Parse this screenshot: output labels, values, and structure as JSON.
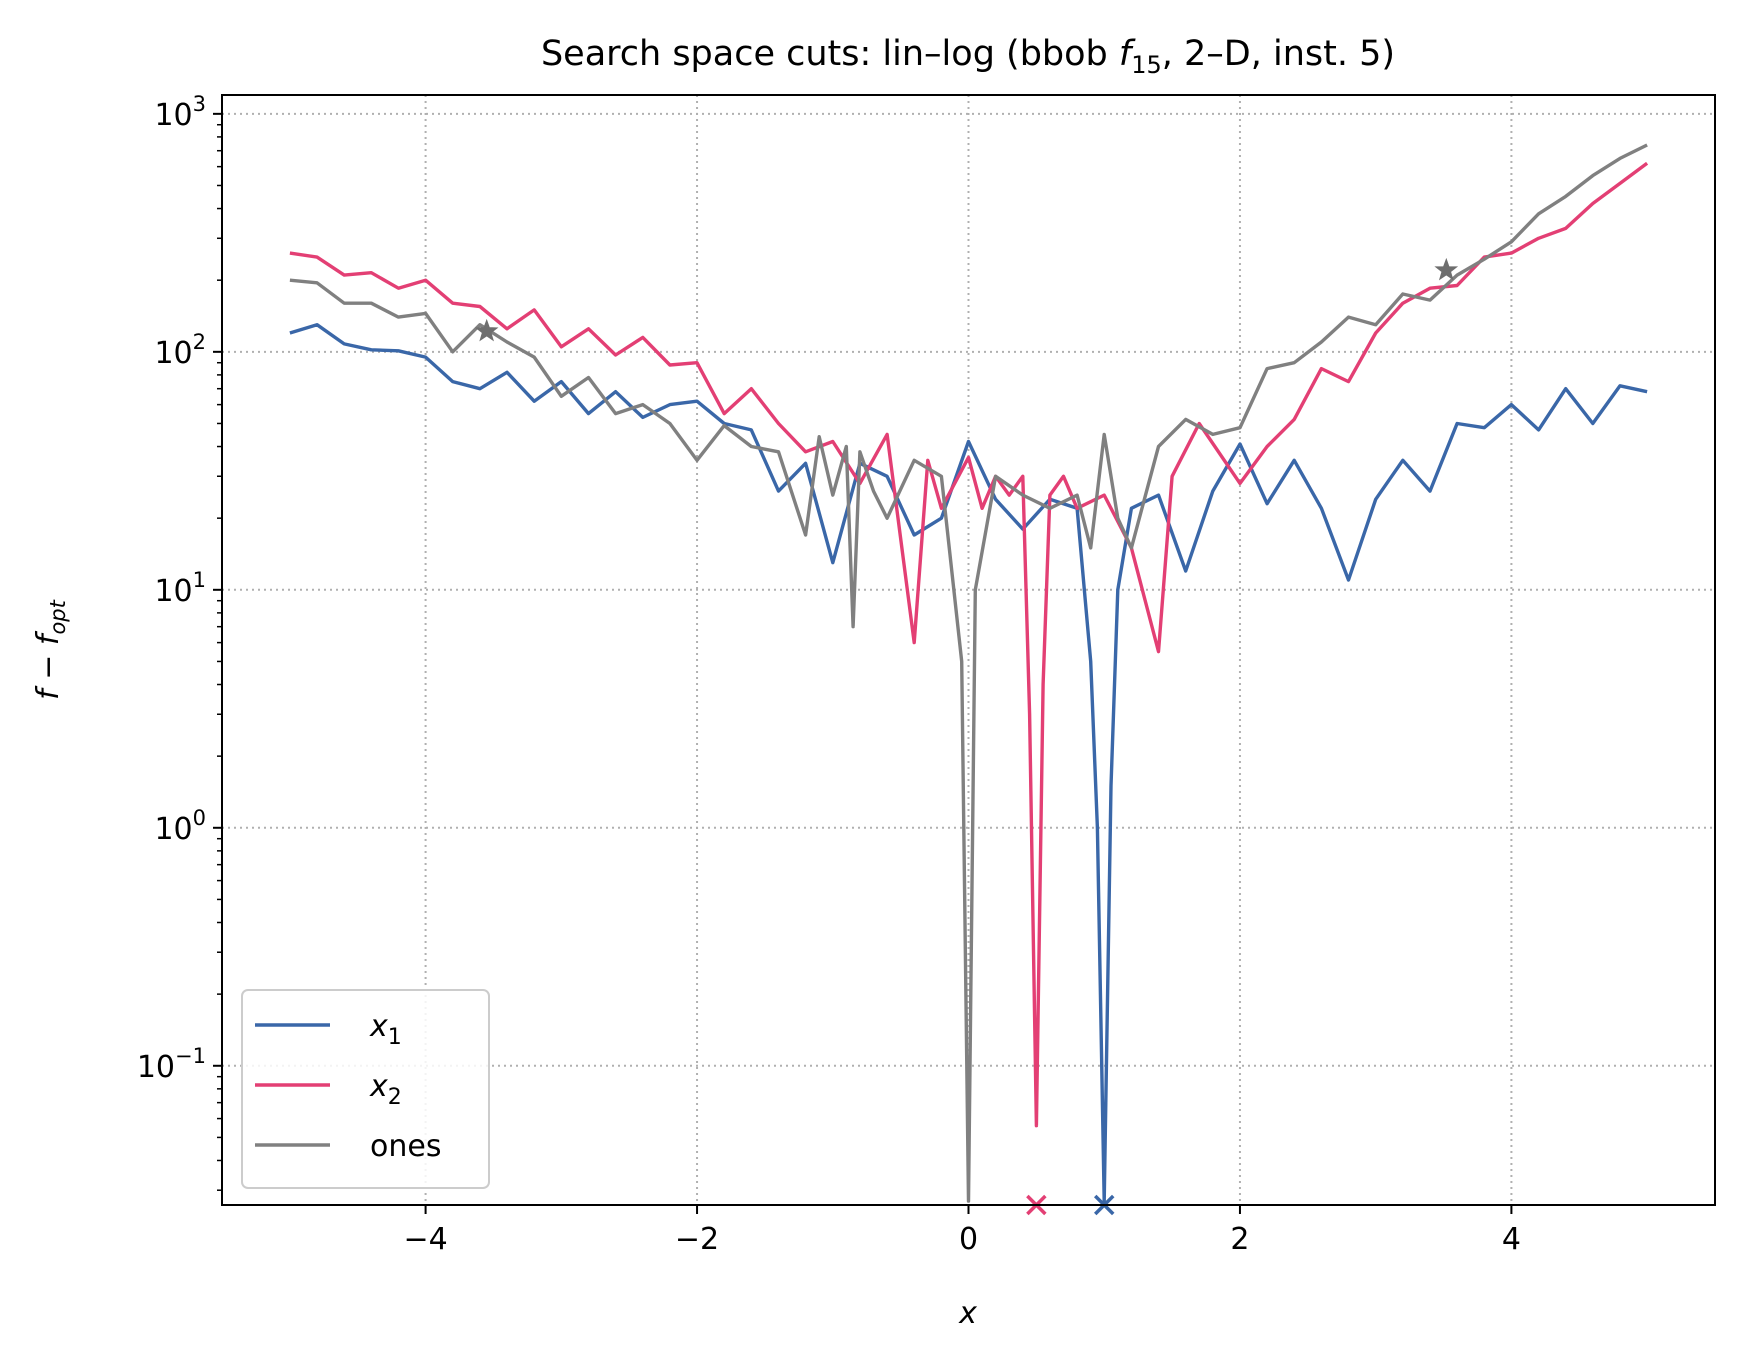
{
  "chart_data": {
    "type": "line",
    "title": "Search space cuts: lin–log (bbob f15, 2–D, inst. 5)",
    "title_parts": {
      "prefix": "Search space cuts: lin–log (bbob ",
      "func": "f",
      "func_sub": "15",
      "suffix": ", 2–D, inst. 5)"
    },
    "xlabel": "x",
    "ylabel": "f − f_opt",
    "ylabel_parts": {
      "main": "f − f",
      "sub": "opt"
    },
    "xlim": [
      -5.5,
      5.5
    ],
    "ylim": [
      0.026,
      1200
    ],
    "yscale": "log",
    "grid": true,
    "legend_position": "lower-left",
    "x_ticks": [
      -4,
      -2,
      0,
      2,
      4
    ],
    "x_tick_labels": [
      "−4",
      "−2",
      "0",
      "2",
      "4"
    ],
    "y_ticks": [
      0.1,
      1,
      10,
      100,
      1000
    ],
    "y_tick_labels": [
      {
        "base": "10",
        "exp": "−1"
      },
      {
        "base": "10",
        "exp": "0"
      },
      {
        "base": "10",
        "exp": "1"
      },
      {
        "base": "10",
        "exp": "2"
      },
      {
        "base": "10",
        "exp": "3"
      }
    ],
    "series": [
      {
        "name": "x1",
        "legend": {
          "main": "x",
          "sub": "1"
        },
        "color": "#3a67a8",
        "x": [
          -5.0,
          -4.8,
          -4.6,
          -4.4,
          -4.2,
          -4.0,
          -3.8,
          -3.6,
          -3.4,
          -3.2,
          -3.0,
          -2.8,
          -2.6,
          -2.4,
          -2.2,
          -2.0,
          -1.8,
          -1.6,
          -1.4,
          -1.2,
          -1.0,
          -0.8,
          -0.6,
          -0.4,
          -0.2,
          0.0,
          0.2,
          0.4,
          0.6,
          0.8,
          0.9,
          0.95,
          1.0,
          1.05,
          1.1,
          1.2,
          1.4,
          1.6,
          1.8,
          2.0,
          2.2,
          2.4,
          2.6,
          2.8,
          3.0,
          3.2,
          3.4,
          3.6,
          3.8,
          4.0,
          4.2,
          4.4,
          4.6,
          4.8,
          5.0
        ],
        "y": [
          120,
          130,
          108,
          102,
          101,
          95,
          75,
          70,
          82,
          62,
          75,
          55,
          68,
          53,
          60,
          62,
          50,
          47,
          26,
          34,
          13,
          34,
          30,
          17,
          20,
          42,
          24,
          18,
          24,
          22,
          5,
          1,
          0.027,
          1.5,
          10,
          22,
          25,
          12,
          26,
          41,
          23,
          35,
          22,
          11,
          24,
          35,
          26,
          50,
          48,
          60,
          47,
          70,
          50,
          72,
          68
        ],
        "optimum_x": 1.0
      },
      {
        "name": "x2",
        "legend": {
          "main": "x",
          "sub": "2"
        },
        "color": "#e33f74",
        "x": [
          -5.0,
          -4.8,
          -4.6,
          -4.4,
          -4.2,
          -4.0,
          -3.8,
          -3.6,
          -3.4,
          -3.2,
          -3.0,
          -2.8,
          -2.6,
          -2.4,
          -2.2,
          -2.0,
          -1.8,
          -1.6,
          -1.4,
          -1.2,
          -1.0,
          -0.8,
          -0.6,
          -0.4,
          -0.3,
          -0.2,
          0.0,
          0.1,
          0.2,
          0.3,
          0.4,
          0.45,
          0.5,
          0.55,
          0.6,
          0.7,
          0.8,
          1.0,
          1.2,
          1.4,
          1.5,
          1.7,
          2.0,
          2.2,
          2.4,
          2.6,
          2.8,
          3.0,
          3.2,
          3.4,
          3.6,
          3.8,
          4.0,
          4.2,
          4.4,
          4.6,
          4.8,
          5.0
        ],
        "y": [
          260,
          250,
          210,
          215,
          185,
          200,
          160,
          155,
          125,
          150,
          105,
          125,
          97,
          115,
          88,
          90,
          55,
          70,
          50,
          38,
          42,
          28,
          45,
          6,
          35,
          22,
          36,
          22,
          30,
          25,
          30,
          3,
          0.056,
          4,
          25,
          30,
          22,
          25,
          15,
          5.5,
          30,
          50,
          28,
          40,
          52,
          85,
          75,
          120,
          160,
          185,
          190,
          250,
          260,
          300,
          330,
          420,
          510,
          620
        ],
        "optimum_x": 0.5
      },
      {
        "name": "ones",
        "legend": {
          "main": "ones",
          "sub": ""
        },
        "color": "#808080",
        "x": [
          -5.0,
          -4.8,
          -4.6,
          -4.4,
          -4.2,
          -4.0,
          -3.8,
          -3.6,
          -3.4,
          -3.2,
          -3.0,
          -2.8,
          -2.6,
          -2.4,
          -2.2,
          -2.0,
          -1.8,
          -1.6,
          -1.4,
          -1.2,
          -1.1,
          -1.0,
          -0.9,
          -0.85,
          -0.8,
          -0.7,
          -0.6,
          -0.4,
          -0.2,
          -0.05,
          0.0,
          0.05,
          0.2,
          0.4,
          0.6,
          0.8,
          0.9,
          1.0,
          1.1,
          1.2,
          1.4,
          1.6,
          1.8,
          2.0,
          2.2,
          2.4,
          2.6,
          2.8,
          3.0,
          3.2,
          3.4,
          3.6,
          3.8,
          4.0,
          4.2,
          4.4,
          4.6,
          4.8,
          5.0
        ],
        "y": [
          200,
          195,
          160,
          160,
          140,
          145,
          100,
          130,
          110,
          95,
          65,
          78,
          55,
          60,
          50,
          35,
          49,
          40,
          38,
          17,
          44,
          25,
          40,
          7,
          38,
          26,
          20,
          35,
          30,
          5,
          0.027,
          10,
          30,
          25,
          22,
          25,
          15,
          45,
          20,
          15,
          40,
          52,
          45,
          48,
          85,
          90,
          110,
          140,
          130,
          175,
          165,
          210,
          245,
          290,
          380,
          450,
          550,
          650,
          740
        ],
        "optimum_x": 0.0
      }
    ],
    "star_markers": [
      {
        "x": -3.55,
        "y": 122
      },
      {
        "x": 3.52,
        "y": 220
      }
    ]
  }
}
